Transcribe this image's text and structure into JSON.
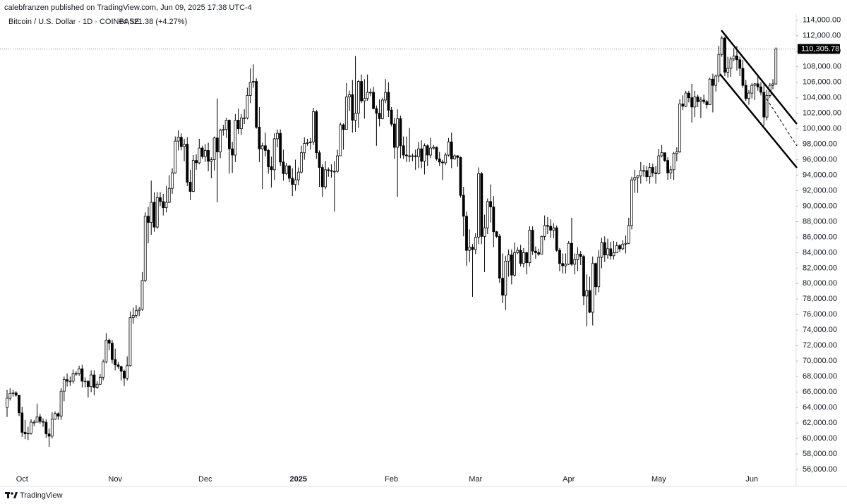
{
  "header": {
    "published": "calebfranzen published on TradingView.com, Jun 09, 2025 17:38 UTC-4",
    "symbol": "Bitcoin / U.S. Dollar · 1D · COINBASE",
    "change": "+4,521.38 (+4.27%)"
  },
  "footer": {
    "brand": "TradingView"
  },
  "chart_data": {
    "type": "candlestick",
    "up_color": "#ffffff",
    "down_color": "#000000",
    "line_color": "#000000",
    "grid": false,
    "categories": [
      null,
      null,
      null,
      null,
      null,
      "Oct",
      null,
      null,
      null,
      null,
      null,
      null,
      null,
      null,
      null,
      null,
      null,
      null,
      null,
      null,
      null,
      null,
      null,
      null,
      null,
      null,
      null,
      null,
      null,
      null,
      null,
      null,
      null,
      null,
      null,
      null,
      "Nov",
      null,
      null,
      null,
      null,
      null,
      null,
      null,
      null,
      null,
      null,
      null,
      null,
      null,
      null,
      null,
      null,
      null,
      null,
      null,
      null,
      null,
      null,
      null,
      null,
      null,
      null,
      null,
      null,
      null,
      "Dec",
      null,
      null,
      null,
      null,
      null,
      null,
      null,
      null,
      null,
      null,
      null,
      null,
      null,
      null,
      null,
      null,
      null,
      null,
      null,
      null,
      null,
      null,
      null,
      null,
      null,
      null,
      null,
      null,
      null,
      null,
      "2025",
      null,
      null,
      null,
      null,
      null,
      null,
      null,
      null,
      null,
      null,
      null,
      null,
      null,
      null,
      null,
      null,
      null,
      null,
      null,
      null,
      null,
      null,
      null,
      null,
      null,
      null,
      null,
      null,
      null,
      null,
      "Feb",
      null,
      null,
      null,
      null,
      null,
      null,
      null,
      null,
      null,
      null,
      null,
      null,
      null,
      null,
      null,
      null,
      null,
      null,
      null,
      null,
      null,
      null,
      null,
      null,
      null,
      null,
      null,
      "Mar",
      null,
      null,
      null,
      null,
      null,
      null,
      null,
      null,
      null,
      null,
      null,
      null,
      null,
      null,
      null,
      null,
      null,
      null,
      null,
      null,
      null,
      null,
      null,
      null,
      null,
      null,
      null,
      null,
      null,
      null,
      "Apr",
      null,
      null,
      null,
      null,
      null,
      null,
      null,
      null,
      null,
      null,
      null,
      null,
      null,
      null,
      null,
      null,
      null,
      null,
      null,
      null,
      null,
      null,
      null,
      null,
      null,
      null,
      null,
      null,
      null,
      "May",
      null,
      null,
      null,
      null,
      null,
      null,
      null,
      null,
      null,
      null,
      null,
      null,
      null,
      null,
      null,
      null,
      null,
      null,
      null,
      null,
      null,
      null,
      null,
      null,
      null,
      null,
      null,
      null,
      null,
      null,
      "Jun",
      null,
      null,
      null,
      null,
      null,
      null,
      null,
      null
    ],
    "open": [
      64000,
      65200,
      65800,
      65900,
      65600,
      63300,
      60800,
      60600,
      60700,
      62100,
      62100,
      62800,
      62200,
      62100,
      60600,
      60300,
      62500,
      63200,
      62900,
      66100,
      67600,
      67400,
      67400,
      68400,
      68400,
      69000,
      67400,
      67400,
      66700,
      68200,
      66600,
      67000,
      67900,
      69900,
      72700,
      72300,
      70200,
      69500,
      69300,
      68700,
      67800,
      69400,
      75600,
      75900,
      76500,
      76700,
      80400,
      88700,
      87900,
      90500,
      87300,
      91100,
      90600,
      89800,
      90500,
      92300,
      94300,
      98400,
      98900,
      97700,
      98000,
      93100,
      91900,
      95900,
      95600,
      97500,
      96400,
      97200,
      95800,
      96000,
      98800,
      97000,
      99800,
      99900,
      101100,
      97400,
      96600,
      101100,
      100000,
      101400,
      101400,
      104300,
      106000,
      106100,
      100200,
      97400,
      97800,
      97200,
      95100,
      94700,
      98700,
      99400,
      95700,
      94200,
      95200,
      93600,
      92800,
      93400,
      94400,
      96900,
      98100,
      98200,
      98300,
      102200,
      96900,
      95000,
      92500,
      94700,
      94600,
      94500,
      94500,
      96500,
      100500,
      99900,
      104100,
      104400,
      101100,
      102000,
      106100,
      103600,
      103900,
      104700,
      104700,
      102600,
      102000,
      101300,
      103700,
      104700,
      102400,
      100600,
      97600,
      101300,
      97800,
      96600,
      96500,
      96500,
      96500,
      96400,
      97400,
      95800,
      97800,
      96600,
      97500,
      97600,
      96100,
      95700,
      95600,
      96600,
      98300,
      96100,
      96500,
      96300,
      91400,
      88700,
      84300,
      84700,
      84400,
      86000,
      94200,
      86100,
      87200,
      90600,
      89900,
      86700,
      86100,
      80700,
      78500,
      82900,
      83700,
      81100,
      84000,
      84300,
      82600,
      84000,
      82700,
      86900,
      84200,
      84000,
      83800,
      86100,
      87500,
      87400,
      86900,
      87200,
      84300,
      82600,
      82300,
      82500,
      85200,
      82500,
      83100,
      83800,
      83500,
      78400,
      79100,
      76300,
      82600,
      79600,
      83400,
      85300,
      83700,
      84500,
      83600,
      84000,
      84900,
      84500,
      85100,
      85200,
      87500,
      93400,
      93700,
      93900,
      94600,
      94600,
      93800,
      95000,
      94300,
      94200,
      96500,
      96900,
      95900,
      94300,
      94700,
      96800,
      97000,
      103200,
      102900,
      104600,
      104000,
      102800,
      104100,
      103500,
      103700,
      103500,
      103100,
      106400,
      105600,
      106800,
      109600,
      111700,
      107300,
      107800,
      109000,
      109400,
      108900,
      107800,
      105600,
      103900,
      104600,
      105600,
      105800,
      105400,
      104700,
      101500,
      104300,
      105600,
      105784.4
    ],
    "high": [
      66300,
      66500,
      66300,
      66100,
      65600,
      64100,
      62400,
      61500,
      62500,
      62400,
      64500,
      63200,
      62600,
      62500,
      61300,
      63400,
      63500,
      63400,
      66500,
      68000,
      68400,
      68000,
      68900,
      68700,
      69400,
      69500,
      67900,
      67500,
      68800,
      68800,
      67400,
      68300,
      70200,
      73600,
      72900,
      72700,
      71600,
      69900,
      69400,
      68900,
      70600,
      76400,
      76900,
      77200,
      77000,
      81500,
      89200,
      89900,
      93300,
      91800,
      91800,
      91800,
      91600,
      92600,
      94000,
      94900,
      99000,
      99800,
      99400,
      98700,
      98900,
      94700,
      96600,
      96700,
      98700,
      97800,
      98000,
      98200,
      96300,
      99000,
      103900,
      100000,
      100500,
      101400,
      101200,
      98300,
      101900,
      102600,
      101900,
      102500,
      105300,
      107800,
      108300,
      106500,
      102800,
      98200,
      99500,
      97400,
      96400,
      99400,
      99900,
      99900,
      97300,
      95600,
      95300,
      94900,
      96000,
      95000,
      97800,
      98900,
      98700,
      98800,
      102700,
      102400,
      97200,
      95400,
      95800,
      95000,
      95400,
      95800,
      97300,
      100800,
      100700,
      105900,
      104900,
      106300,
      109400,
      106300,
      107000,
      106400,
      107000,
      105200,
      105400,
      103000,
      103800,
      104000,
      106400,
      106000,
      102800,
      101400,
      102500,
      101700,
      99000,
      99000,
      100100,
      96800,
      97300,
      98300,
      98500,
      98100,
      98000,
      98800,
      97900,
      97700,
      97000,
      96000,
      96900,
      98800,
      99500,
      96700,
      96600,
      96400,
      92500,
      89300,
      87000,
      85100,
      86500,
      95000,
      94400,
      88900,
      91000,
      92800,
      91300,
      86800,
      86400,
      83900,
      83600,
      84400,
      84400,
      85300,
      84700,
      85000,
      84600,
      84100,
      87400,
      87400,
      84800,
      84500,
      86200,
      88800,
      88600,
      88300,
      87800,
      87500,
      84600,
      83900,
      83900,
      85500,
      88500,
      83900,
      84700,
      84200,
      83700,
      81200,
      80900,
      83500,
      82700,
      84300,
      85900,
      86100,
      85800,
      85400,
      85500,
      85400,
      85100,
      85600,
      86200,
      88500,
      93800,
      94700,
      94000,
      95700,
      95300,
      95200,
      95600,
      95500,
      95200,
      97400,
      97900,
      96900,
      96300,
      95200,
      97000,
      97600,
      103800,
      104300,
      104900,
      104900,
      105800,
      104900,
      104400,
      104100,
      104400,
      103700,
      106600,
      107100,
      107000,
      110700,
      112000,
      111900,
      109300,
      109300,
      110400,
      110700,
      109300,
      108900,
      106300,
      105000,
      105900,
      105900,
      106800,
      106000,
      105900,
      105000,
      105900,
      106400,
      110500
    ],
    "low": [
      62800,
      64900,
      65400,
      65400,
      62900,
      60200,
      59900,
      59800,
      60500,
      61600,
      62100,
      61900,
      61500,
      60100,
      58900,
      60000,
      62400,
      62400,
      62400,
      64800,
      66700,
      66800,
      67100,
      68100,
      68100,
      66600,
      66600,
      65300,
      66000,
      65600,
      66400,
      66900,
      67500,
      69700,
      71400,
      69700,
      68800,
      69000,
      67500,
      66800,
      67500,
      69300,
      74800,
      75600,
      75800,
      76500,
      80200,
      85200,
      86300,
      86700,
      87100,
      90000,
      88800,
      89200,
      90400,
      91600,
      94200,
      97200,
      97200,
      95800,
      92600,
      90800,
      91800,
      94700,
      95400,
      96100,
      95700,
      94500,
      93600,
      94600,
      90500,
      96200,
      99100,
      98800,
      94200,
      94300,
      95700,
      99300,
      99200,
      100600,
      101200,
      103300,
      105300,
      100000,
      95700,
      92200,
      96400,
      94200,
      92400,
      93400,
      97600,
      95200,
      93300,
      94000,
      93100,
      91300,
      92000,
      92700,
      94200,
      96000,
      97800,
      97300,
      97900,
      96100,
      92500,
      91200,
      92200,
      93800,
      93700,
      89300,
      94300,
      96500,
      97300,
      99900,
      102300,
      99500,
      99600,
      100100,
      103300,
      101300,
      103600,
      104200,
      102500,
      97800,
      100300,
      101200,
      103300,
      101500,
      100300,
      96100,
      91200,
      96200,
      96100,
      95700,
      95700,
      95800,
      94700,
      94900,
      94900,
      94100,
      95200,
      96200,
      97300,
      95900,
      95200,
      93400,
      95300,
      96400,
      94900,
      96000,
      95100,
      91100,
      86100,
      82300,
      82800,
      78300,
      83800,
      85100,
      85100,
      81500,
      86400,
      87900,
      84700,
      85900,
      80100,
      77500,
      76600,
      80900,
      79900,
      80900,
      83800,
      82200,
      82100,
      81200,
      82200,
      83700,
      83200,
      83600,
      83800,
      85600,
      86400,
      85900,
      85900,
      84100,
      81600,
      81300,
      81300,
      82400,
      82300,
      81200,
      81600,
      82400,
      77200,
      74500,
      76200,
      74600,
      78500,
      78900,
      82000,
      82800,
      83200,
      83100,
      83100,
      84000,
      84100,
      84300,
      83900,
      85100,
      87000,
      91700,
      91700,
      92900,
      93800,
      93200,
      92900,
      93800,
      92900,
      94100,
      96300,
      95700,
      93400,
      93500,
      93400,
      95800,
      96900,
      102400,
      102800,
      103400,
      100800,
      101500,
      102800,
      101400,
      103200,
      102600,
      103100,
      102100,
      104800,
      106000,
      109300,
      106800,
      106600,
      106700,
      108700,
      107500,
      106800,
      105300,
      103600,
      103100,
      103900,
      103700,
      104900,
      104300,
      100400,
      101100,
      104000,
      105100,
      105700
    ],
    "close": [
      65200,
      65800,
      65900,
      65600,
      63300,
      60800,
      60600,
      60700,
      62100,
      62100,
      62800,
      62200,
      62100,
      60600,
      60300,
      62500,
      63200,
      62900,
      66100,
      67600,
      67400,
      67400,
      68400,
      68400,
      69000,
      67400,
      67400,
      66700,
      68200,
      66600,
      67000,
      67900,
      69900,
      72700,
      72300,
      70200,
      69500,
      69300,
      68700,
      67800,
      69400,
      75600,
      75900,
      76500,
      76700,
      80400,
      88700,
      87900,
      90500,
      87300,
      91100,
      90600,
      89800,
      90500,
      92300,
      94300,
      98400,
      98900,
      97700,
      98000,
      93100,
      91900,
      95900,
      95600,
      97500,
      96400,
      97200,
      95800,
      96000,
      98800,
      97000,
      99800,
      99900,
      101100,
      97400,
      96600,
      101100,
      100000,
      101400,
      101400,
      104300,
      106000,
      106100,
      100200,
      97400,
      97800,
      97200,
      95100,
      94700,
      98700,
      99400,
      95700,
      94200,
      95200,
      93600,
      92800,
      93400,
      94400,
      96900,
      98100,
      98200,
      98300,
      102200,
      96900,
      95000,
      92500,
      94700,
      94600,
      94500,
      94500,
      96500,
      100500,
      99900,
      104100,
      104400,
      101100,
      102000,
      106100,
      103600,
      103900,
      104700,
      104700,
      102600,
      102000,
      101300,
      103700,
      104700,
      102400,
      100600,
      97600,
      101300,
      97800,
      96600,
      96500,
      96500,
      96500,
      96400,
      97400,
      95800,
      97800,
      96600,
      97500,
      97600,
      96100,
      95700,
      95600,
      96600,
      98300,
      96100,
      96500,
      96300,
      91400,
      88700,
      84300,
      84700,
      84400,
      86000,
      94200,
      86100,
      87200,
      90600,
      89900,
      86700,
      86100,
      80700,
      78500,
      82900,
      83700,
      81100,
      84000,
      84300,
      82600,
      84000,
      82700,
      86900,
      84200,
      84000,
      83800,
      86100,
      87500,
      87400,
      86900,
      87200,
      84300,
      82600,
      82300,
      82500,
      85200,
      82500,
      83100,
      83800,
      83500,
      78400,
      79100,
      76300,
      82600,
      79600,
      83400,
      85300,
      83700,
      84500,
      83600,
      84000,
      84900,
      84500,
      85100,
      85200,
      87500,
      93400,
      93700,
      93900,
      94600,
      94600,
      93800,
      95000,
      94300,
      94200,
      96500,
      96900,
      95900,
      94300,
      94700,
      96800,
      97000,
      103200,
      102900,
      104600,
      104000,
      102800,
      104100,
      103500,
      103700,
      103500,
      103100,
      106400,
      105600,
      106800,
      109600,
      111700,
      107300,
      107800,
      109000,
      109400,
      108900,
      107800,
      105600,
      103900,
      104600,
      105600,
      105800,
      105400,
      104700,
      101500,
      104300,
      105600,
      105784.4,
      110305.78
    ],
    "close_label": "110,305.78",
    "ylim": [
      54000,
      114800
    ],
    "yticks": [
      {
        "value": 56000,
        "label": "56,000.00"
      },
      {
        "value": 58000,
        "label": "58,000.00"
      },
      {
        "value": 60000,
        "label": "60,000.00"
      },
      {
        "value": 62000,
        "label": "62,000.00"
      },
      {
        "value": 64000,
        "label": "64,000.00"
      },
      {
        "value": 66000,
        "label": "66,000.00"
      },
      {
        "value": 68000,
        "label": "68,000.00"
      },
      {
        "value": 70000,
        "label": "70,000.00"
      },
      {
        "value": 72000,
        "label": "72,000.00"
      },
      {
        "value": 74000,
        "label": "74,000.00"
      },
      {
        "value": 76000,
        "label": "76,000.00"
      },
      {
        "value": 78000,
        "label": "78,000.00"
      },
      {
        "value": 80000,
        "label": "80,000.00"
      },
      {
        "value": 82000,
        "label": "82,000.00"
      },
      {
        "value": 84000,
        "label": "84,000.00"
      },
      {
        "value": 86000,
        "label": "86,000.00"
      },
      {
        "value": 88000,
        "label": "88,000.00"
      },
      {
        "value": 90000,
        "label": "90,000.00"
      },
      {
        "value": 92000,
        "label": "92,000.00"
      },
      {
        "value": 94000,
        "label": "94,000.00"
      },
      {
        "value": 96000,
        "label": "96,000.00"
      },
      {
        "value": 98000,
        "label": "98,000.00"
      },
      {
        "value": 100000,
        "label": "100,000.00"
      },
      {
        "value": 102000,
        "label": "102,000.00"
      },
      {
        "value": 104000,
        "label": "104,000.00"
      },
      {
        "value": 106000,
        "label": "106,000.00"
      },
      {
        "value": 108000,
        "label": "108,000.00"
      },
      {
        "value": 110000,
        "label": "110,000.00"
      },
      {
        "value": 112000,
        "label": "112,000.00"
      },
      {
        "value": 114000,
        "label": "114,000.00"
      }
    ]
  }
}
